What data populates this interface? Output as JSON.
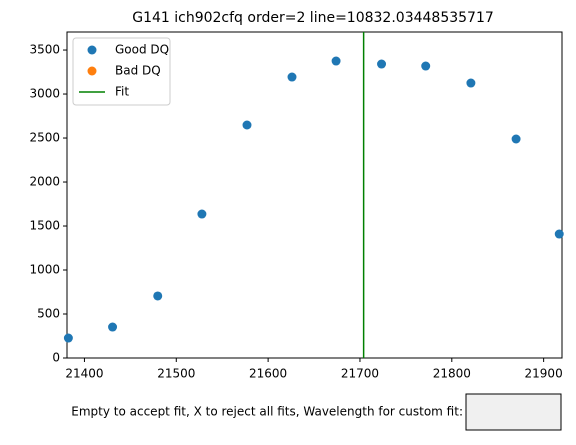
{
  "chart_data": {
    "type": "scatter",
    "title": "G141 ich902cfq order=2 line=10832.03448535717",
    "series": [
      {
        "name": "Good DQ",
        "color": "#1f77b4",
        "x": [
          21382.5,
          21430.6,
          21479.8,
          21527.9,
          21577,
          21626,
          21674,
          21723.5,
          21771.6,
          21820.8,
          21870,
          21917
        ],
        "values": [
          227,
          352,
          705,
          1636,
          2648,
          3193,
          3375,
          3341,
          3318,
          3125,
          2489,
          1409
        ]
      },
      {
        "name": "Bad DQ",
        "color": "#ff7f0e",
        "x": [],
        "values": []
      },
      {
        "name": "Fit",
        "color": "#008000",
        "x": 21704
      }
    ],
    "xlim": [
      21381,
      21920
    ],
    "xticks": [
      21400,
      21500,
      21600,
      21700,
      21800,
      21900
    ],
    "ylim": [
      0,
      3705
    ],
    "yticks": [
      0,
      500,
      1000,
      1500,
      2000,
      2500,
      3000,
      3500
    ],
    "legend": "upper left"
  },
  "textbox": {
    "label": "Empty to accept fit, X to reject all fits, Wavelength for custom fit:"
  }
}
